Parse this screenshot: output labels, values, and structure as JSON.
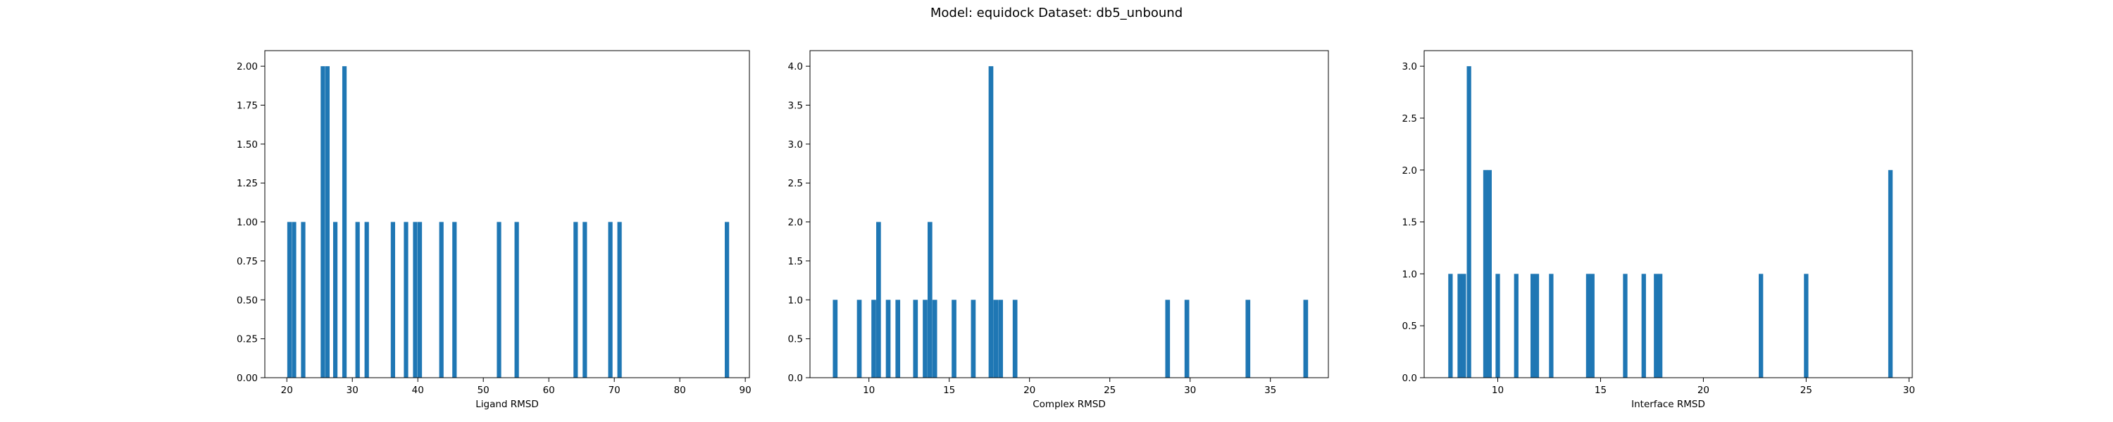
{
  "figure": {
    "suptitle": "Model: equidock Dataset: db5_unbound",
    "bar_color": "#1f77b4"
  },
  "chart_data": [
    {
      "type": "bar",
      "title": "",
      "xlabel": "Ligand RMSD",
      "ylabel": "",
      "xlim": [
        16.64,
        90.63
      ],
      "ylim": [
        0,
        2.1
      ],
      "xticks": [
        20,
        30,
        40,
        50,
        60,
        70,
        80,
        90
      ],
      "yticks": [
        0.0,
        0.25,
        0.5,
        0.75,
        1.0,
        1.25,
        1.5,
        1.75,
        2.0
      ],
      "ytick_decimals": 2,
      "bin_width": 0.667,
      "bins": [
        {
          "x": 20.4,
          "count": 1
        },
        {
          "x": 21.1,
          "count": 1
        },
        {
          "x": 22.5,
          "count": 1
        },
        {
          "x": 25.5,
          "count": 2
        },
        {
          "x": 26.2,
          "count": 2
        },
        {
          "x": 27.4,
          "count": 1
        },
        {
          "x": 28.8,
          "count": 2
        },
        {
          "x": 30.8,
          "count": 1
        },
        {
          "x": 32.2,
          "count": 1
        },
        {
          "x": 36.2,
          "count": 1
        },
        {
          "x": 38.2,
          "count": 1
        },
        {
          "x": 39.6,
          "count": 1
        },
        {
          "x": 40.3,
          "count": 1
        },
        {
          "x": 43.6,
          "count": 1
        },
        {
          "x": 45.6,
          "count": 1
        },
        {
          "x": 52.4,
          "count": 1
        },
        {
          "x": 55.1,
          "count": 1
        },
        {
          "x": 64.1,
          "count": 1
        },
        {
          "x": 65.5,
          "count": 1
        },
        {
          "x": 69.4,
          "count": 1
        },
        {
          "x": 70.8,
          "count": 1
        },
        {
          "x": 87.2,
          "count": 1
        }
      ]
    },
    {
      "type": "bar",
      "title": "",
      "xlabel": "Complex RMSD",
      "ylabel": "",
      "xlim": [
        6.33,
        38.61
      ],
      "ylim": [
        0,
        4.2
      ],
      "xticks": [
        10,
        15,
        20,
        25,
        30,
        35
      ],
      "yticks": [
        0.0,
        0.5,
        1.0,
        1.5,
        2.0,
        2.5,
        3.0,
        3.5,
        4.0
      ],
      "ytick_decimals": 1,
      "bin_width": 0.293,
      "bins": [
        {
          "x": 7.9,
          "count": 1
        },
        {
          "x": 9.4,
          "count": 1
        },
        {
          "x": 10.3,
          "count": 1
        },
        {
          "x": 10.6,
          "count": 2
        },
        {
          "x": 11.2,
          "count": 1
        },
        {
          "x": 11.8,
          "count": 1
        },
        {
          "x": 12.9,
          "count": 1
        },
        {
          "x": 13.5,
          "count": 1
        },
        {
          "x": 13.8,
          "count": 2
        },
        {
          "x": 14.1,
          "count": 1
        },
        {
          "x": 15.3,
          "count": 1
        },
        {
          "x": 16.5,
          "count": 1
        },
        {
          "x": 17.6,
          "count": 4
        },
        {
          "x": 17.9,
          "count": 1
        },
        {
          "x": 18.2,
          "count": 1
        },
        {
          "x": 19.1,
          "count": 1
        },
        {
          "x": 28.6,
          "count": 1
        },
        {
          "x": 29.8,
          "count": 1
        },
        {
          "x": 33.6,
          "count": 1
        },
        {
          "x": 37.2,
          "count": 1
        }
      ]
    },
    {
      "type": "bar",
      "title": "",
      "xlabel": "Interface RMSD",
      "ylabel": "",
      "xlim": [
        6.42,
        30.16
      ],
      "ylim": [
        0,
        3.15
      ],
      "xticks": [
        10,
        15,
        20,
        25,
        30
      ],
      "yticks": [
        0.0,
        0.5,
        1.0,
        1.5,
        2.0,
        2.5,
        3.0
      ],
      "ytick_decimals": 1,
      "bin_width": 0.215,
      "bins": [
        {
          "x": 7.7,
          "count": 1
        },
        {
          "x": 8.15,
          "count": 1
        },
        {
          "x": 8.35,
          "count": 1
        },
        {
          "x": 8.6,
          "count": 3
        },
        {
          "x": 9.4,
          "count": 2
        },
        {
          "x": 9.6,
          "count": 2
        },
        {
          "x": 10.0,
          "count": 1
        },
        {
          "x": 10.9,
          "count": 1
        },
        {
          "x": 11.7,
          "count": 1
        },
        {
          "x": 11.9,
          "count": 1
        },
        {
          "x": 12.6,
          "count": 1
        },
        {
          "x": 14.4,
          "count": 1
        },
        {
          "x": 14.6,
          "count": 1
        },
        {
          "x": 16.2,
          "count": 1
        },
        {
          "x": 17.1,
          "count": 1
        },
        {
          "x": 17.7,
          "count": 1
        },
        {
          "x": 17.9,
          "count": 1
        },
        {
          "x": 22.8,
          "count": 1
        },
        {
          "x": 25.0,
          "count": 1
        },
        {
          "x": 29.1,
          "count": 2
        }
      ]
    }
  ]
}
